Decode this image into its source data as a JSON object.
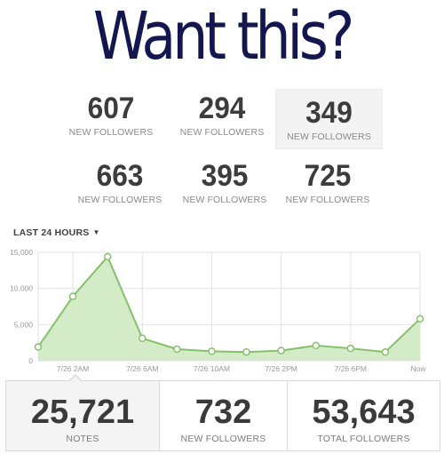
{
  "headline": "Want this?",
  "stats": [
    {
      "value": "607",
      "label": "NEW FOLLOWERS"
    },
    {
      "value": "294",
      "label": "NEW FOLLOWERS"
    },
    {
      "value": "349",
      "label": "NEW FOLLOWERS"
    },
    {
      "value": "663",
      "label": "NEW FOLLOWERS"
    },
    {
      "value": "395",
      "label": "NEW FOLLOWERS"
    },
    {
      "value": "725",
      "label": "NEW FOLLOWERS"
    }
  ],
  "period_selector": {
    "label": "LAST 24 HOURS",
    "caret": "▼"
  },
  "chart_data": {
    "type": "area",
    "y_ticks": [
      "15,000",
      "10,000",
      "5,000",
      "0"
    ],
    "ylim": [
      0,
      15000
    ],
    "x_tick_labels": [
      "7/26 2AM",
      "7/26 6AM",
      "7/26 10AM",
      "7/26 2PM",
      "7/26 6PM",
      "Now"
    ],
    "points": [
      {
        "x": 0,
        "y": 1900
      },
      {
        "x": 1,
        "y": 8900
      },
      {
        "x": 2,
        "y": 14400
      },
      {
        "x": 3,
        "y": 3100
      },
      {
        "x": 4,
        "y": 1600
      },
      {
        "x": 5,
        "y": 1300
      },
      {
        "x": 6,
        "y": 1200
      },
      {
        "x": 7,
        "y": 1400
      },
      {
        "x": 8,
        "y": 2100
      },
      {
        "x": 9,
        "y": 1700
      },
      {
        "x": 10,
        "y": 1200
      },
      {
        "x": 11,
        "y": 5800
      }
    ],
    "grid": true,
    "colors": {
      "line": "#86c06a",
      "fill": "#d3ebc6",
      "grid": "#e2e2e2",
      "marker_fill": "#ffffff"
    }
  },
  "summary": {
    "notes_value": "25,721",
    "notes_label": "NOTES",
    "followers_value": "732",
    "followers_label": "NEW FOLLOWERS",
    "total_value": "53,643",
    "total_label": "TOTAL FOLLOWERS"
  }
}
